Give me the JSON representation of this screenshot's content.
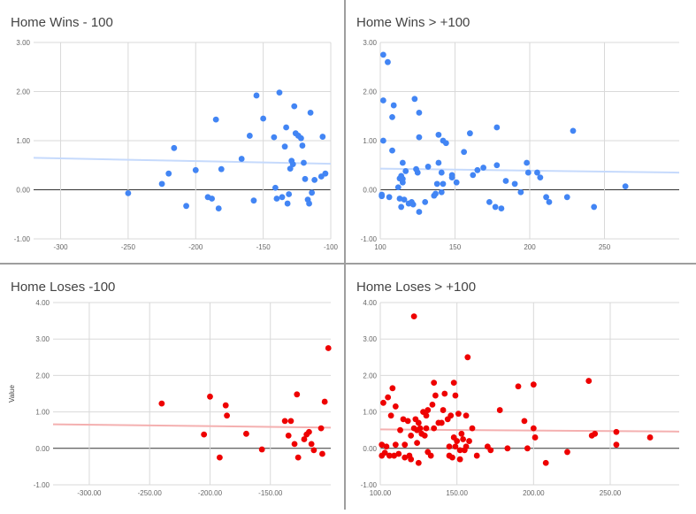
{
  "chart_data": [
    {
      "type": "scatter",
      "title": "Home Wins - 100",
      "ylabel": "",
      "color": "#4285f4",
      "trend_color": "#c6dafc",
      "xlim": [
        -320,
        -100
      ],
      "ylim": [
        -1,
        3
      ],
      "xticks": [
        -300,
        -250,
        -200,
        -150,
        -100
      ],
      "xtick_labels": [
        "-300",
        "-250",
        "-200",
        "-150",
        "-100"
      ],
      "yticks": [
        -1,
        0,
        1,
        2,
        3
      ],
      "ytick_labels": [
        "-1.00",
        "0.00",
        "1.00",
        "2.00",
        "3.00"
      ],
      "trendline": {
        "x": [
          -320,
          -100
        ],
        "y": [
          0.65,
          0.53
        ]
      },
      "points": [
        [
          -250,
          -0.07
        ],
        [
          -225,
          0.12
        ],
        [
          -220,
          0.33
        ],
        [
          -216,
          0.85
        ],
        [
          -207,
          -0.33
        ],
        [
          -200,
          0.4
        ],
        [
          -191,
          -0.15
        ],
        [
          -188,
          -0.18
        ],
        [
          -185,
          1.43
        ],
        [
          -183,
          -0.38
        ],
        [
          -181,
          0.42
        ],
        [
          -166,
          0.63
        ],
        [
          -160,
          1.1
        ],
        [
          -157,
          -0.22
        ],
        [
          -155,
          1.92
        ],
        [
          -150,
          1.45
        ],
        [
          -142,
          1.07
        ],
        [
          -141,
          0.04
        ],
        [
          -140,
          -0.18
        ],
        [
          -138,
          1.98
        ],
        [
          -136,
          -0.15
        ],
        [
          -134,
          0.88
        ],
        [
          -133,
          1.27
        ],
        [
          -132,
          -0.28
        ],
        [
          -131,
          -0.09
        ],
        [
          -130,
          0.43
        ],
        [
          -129,
          0.59
        ],
        [
          -128,
          0.52
        ],
        [
          -127,
          1.7
        ],
        [
          -126,
          1.15
        ],
        [
          -124,
          1.1
        ],
        [
          -122,
          1.05
        ],
        [
          -121,
          0.9
        ],
        [
          -120,
          0.55
        ],
        [
          -119,
          0.22
        ],
        [
          -117,
          -0.2
        ],
        [
          -116,
          -0.28
        ],
        [
          -115,
          1.57
        ],
        [
          -114,
          -0.06
        ],
        [
          -112,
          0.2
        ],
        [
          -107,
          0.27
        ],
        [
          -106,
          1.08
        ],
        [
          -104,
          0.33
        ]
      ]
    },
    {
      "type": "scatter",
      "title": "Home Wins > +100",
      "ylabel": "",
      "color": "#4285f4",
      "trend_color": "#c6dafc",
      "xlim": [
        100,
        300
      ],
      "ylim": [
        -1,
        3
      ],
      "xticks": [
        100,
        150,
        200,
        250
      ],
      "xtick_labels": [
        "100",
        "150",
        "200",
        "250"
      ],
      "yticks": [
        -1,
        0,
        1,
        2,
        3
      ],
      "ytick_labels": [
        "-1.00",
        "0.00",
        "1.00",
        "2.00",
        "3.00"
      ],
      "trendline": {
        "x": [
          100,
          300
        ],
        "y": [
          0.43,
          0.35
        ]
      },
      "points": [
        [
          101,
          -0.1
        ],
        [
          101,
          -0.13
        ],
        [
          102,
          2.75
        ],
        [
          102,
          1.0
        ],
        [
          102,
          1.82
        ],
        [
          105,
          2.6
        ],
        [
          106,
          -0.15
        ],
        [
          108,
          0.8
        ],
        [
          108,
          1.48
        ],
        [
          109,
          1.72
        ],
        [
          112,
          0.05
        ],
        [
          113,
          0.23
        ],
        [
          113,
          -0.18
        ],
        [
          114,
          0.28
        ],
        [
          114,
          -0.35
        ],
        [
          115,
          0.22
        ],
        [
          115,
          0.15
        ],
        [
          115,
          0.55
        ],
        [
          116,
          -0.2
        ],
        [
          117,
          0.38
        ],
        [
          119,
          -0.28
        ],
        [
          121,
          -0.25
        ],
        [
          122,
          -0.3
        ],
        [
          123,
          1.85
        ],
        [
          124,
          0.42
        ],
        [
          125,
          0.35
        ],
        [
          126,
          -0.45
        ],
        [
          126,
          1.07
        ],
        [
          126,
          1.57
        ],
        [
          130,
          -0.25
        ],
        [
          132,
          0.47
        ],
        [
          136,
          -0.12
        ],
        [
          137,
          -0.08
        ],
        [
          138,
          0.12
        ],
        [
          139,
          0.55
        ],
        [
          139,
          1.12
        ],
        [
          141,
          0.35
        ],
        [
          141,
          -0.05
        ],
        [
          142,
          0.12
        ],
        [
          142,
          1.0
        ],
        [
          144,
          0.95
        ],
        [
          148,
          0.3
        ],
        [
          148,
          0.25
        ],
        [
          151,
          0.15
        ],
        [
          156,
          0.77
        ],
        [
          160,
          1.15
        ],
        [
          162,
          0.3
        ],
        [
          165,
          0.4
        ],
        [
          169,
          0.45
        ],
        [
          173,
          -0.25
        ],
        [
          177,
          -0.35
        ],
        [
          178,
          0.5
        ],
        [
          178,
          1.27
        ],
        [
          181,
          -0.38
        ],
        [
          184,
          0.18
        ],
        [
          190,
          0.12
        ],
        [
          194,
          -0.05
        ],
        [
          198,
          0.55
        ],
        [
          199,
          0.35
        ],
        [
          205,
          0.35
        ],
        [
          207,
          0.25
        ],
        [
          211,
          -0.15
        ],
        [
          213,
          -0.25
        ],
        [
          225,
          -0.15
        ],
        [
          229,
          1.2
        ],
        [
          243,
          -0.35
        ],
        [
          264,
          0.07
        ]
      ]
    },
    {
      "type": "scatter",
      "title": "Home Loses -100",
      "ylabel": "Value",
      "color": "#ee0000",
      "trend_color": "#f4b0b0",
      "xlim": [
        -330,
        -100
      ],
      "ylim": [
        -1,
        4
      ],
      "xticks": [
        -300,
        -250,
        -200,
        -150
      ],
      "xtick_labels": [
        "-300.00",
        "-250.00",
        "-200.00",
        "-150.00"
      ],
      "yticks": [
        -1,
        0,
        1,
        2,
        3,
        4
      ],
      "ytick_labels": [
        "-1.00",
        "0.00",
        "1.00",
        "2.00",
        "3.00",
        "4.00"
      ],
      "trendline": {
        "x": [
          -330,
          -100
        ],
        "y": [
          0.66,
          0.57
        ]
      },
      "points": [
        [
          -240,
          1.23
        ],
        [
          -205,
          0.38
        ],
        [
          -200,
          1.42
        ],
        [
          -192,
          -0.25
        ],
        [
          -187,
          1.18
        ],
        [
          -186,
          0.9
        ],
        [
          -170,
          0.4
        ],
        [
          -157,
          -0.03
        ],
        [
          -138,
          0.75
        ],
        [
          -133,
          0.75
        ],
        [
          -135,
          0.35
        ],
        [
          -130,
          0.12
        ],
        [
          -128,
          1.48
        ],
        [
          -127,
          -0.25
        ],
        [
          -122,
          0.25
        ],
        [
          -120,
          0.38
        ],
        [
          -118,
          0.45
        ],
        [
          -116,
          0.12
        ],
        [
          -114,
          -0.05
        ],
        [
          -108,
          0.55
        ],
        [
          -107,
          -0.15
        ],
        [
          -105,
          1.28
        ],
        [
          -102,
          2.75
        ]
      ]
    },
    {
      "type": "scatter",
      "title": "Home Loses > +100",
      "ylabel": "",
      "color": "#ee0000",
      "trend_color": "#f4b0b0",
      "xlim": [
        100,
        295
      ],
      "ylim": [
        -1,
        4
      ],
      "xticks": [
        100,
        150,
        200,
        250
      ],
      "xtick_labels": [
        "100.00",
        "150.00",
        "200.00",
        "250.00"
      ],
      "yticks": [
        -1,
        0,
        1,
        2,
        3,
        4
      ],
      "ytick_labels": [
        "-1.00",
        "0.00",
        "1.00",
        "2.00",
        "3.00",
        "4.00"
      ],
      "trendline": {
        "x": [
          100,
          295
        ],
        "y": [
          0.52,
          0.46
        ]
      },
      "points": [
        [
          101,
          -0.2
        ],
        [
          101,
          0.1
        ],
        [
          102,
          1.25
        ],
        [
          103,
          -0.12
        ],
        [
          104,
          0.05
        ],
        [
          105,
          1.4
        ],
        [
          106,
          -0.2
        ],
        [
          107,
          0.9
        ],
        [
          108,
          1.65
        ],
        [
          109,
          -0.2
        ],
        [
          110,
          1.15
        ],
        [
          110,
          0.1
        ],
        [
          112,
          -0.15
        ],
        [
          113,
          0.5
        ],
        [
          115,
          0.8
        ],
        [
          116,
          0.1
        ],
        [
          116,
          -0.25
        ],
        [
          118,
          0.75
        ],
        [
          119,
          -0.2
        ],
        [
          120,
          0.35
        ],
        [
          120,
          -0.3
        ],
        [
          122,
          3.62
        ],
        [
          122,
          0.55
        ],
        [
          123,
          0.8
        ],
        [
          124,
          0.15
        ],
        [
          124,
          0.5
        ],
        [
          125,
          0.7
        ],
        [
          125,
          -0.4
        ],
        [
          126,
          0.55
        ],
        [
          127,
          0.4
        ],
        [
          128,
          1.0
        ],
        [
          129,
          0.35
        ],
        [
          130,
          0.9
        ],
        [
          130,
          0.55
        ],
        [
          131,
          1.05
        ],
        [
          131,
          -0.1
        ],
        [
          133,
          -0.2
        ],
        [
          134,
          1.2
        ],
        [
          135,
          0.55
        ],
        [
          135,
          1.8
        ],
        [
          136,
          1.45
        ],
        [
          138,
          0.7
        ],
        [
          140,
          0.7
        ],
        [
          141,
          1.05
        ],
        [
          142,
          1.5
        ],
        [
          144,
          0.8
        ],
        [
          145,
          -0.2
        ],
        [
          145,
          0.05
        ],
        [
          146,
          0.9
        ],
        [
          147,
          -0.25
        ],
        [
          148,
          1.8
        ],
        [
          148,
          0.3
        ],
        [
          149,
          1.45
        ],
        [
          149,
          0.05
        ],
        [
          150,
          0.2
        ],
        [
          151,
          0.95
        ],
        [
          152,
          -0.3
        ],
        [
          152,
          -0.05
        ],
        [
          153,
          0.4
        ],
        [
          154,
          0.25
        ],
        [
          155,
          -0.05
        ],
        [
          156,
          0.05
        ],
        [
          156,
          0.9
        ],
        [
          157,
          2.5
        ],
        [
          158,
          0.2
        ],
        [
          160,
          0.55
        ],
        [
          163,
          -0.2
        ],
        [
          170,
          0.05
        ],
        [
          172,
          -0.05
        ],
        [
          178,
          1.05
        ],
        [
          183,
          0.0
        ],
        [
          190,
          1.7
        ],
        [
          194,
          0.75
        ],
        [
          196,
          0.0
        ],
        [
          200,
          0.55
        ],
        [
          200,
          1.75
        ],
        [
          201,
          0.3
        ],
        [
          208,
          -0.4
        ],
        [
          222,
          -0.1
        ],
        [
          236,
          1.85
        ],
        [
          238,
          0.35
        ],
        [
          240,
          0.4
        ],
        [
          254,
          0.45
        ],
        [
          254,
          0.1
        ],
        [
          276,
          0.3
        ]
      ]
    }
  ]
}
